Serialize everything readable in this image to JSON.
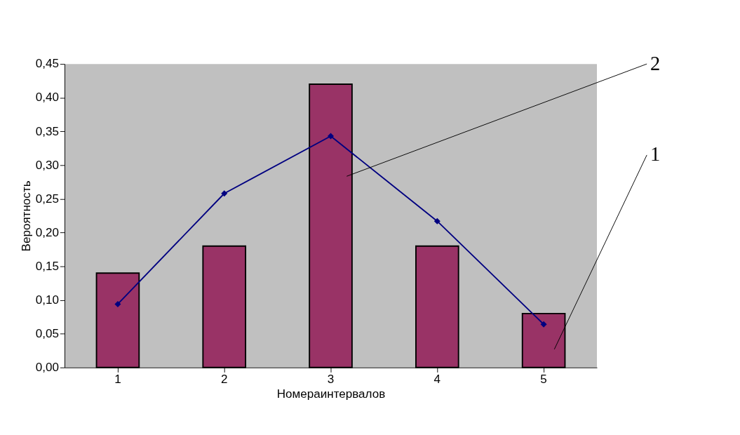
{
  "chart_data": {
    "type": "bar",
    "xlabel": "Номераинтервалов",
    "ylabel": "Вероятность",
    "categories": [
      "1",
      "2",
      "3",
      "4",
      "5"
    ],
    "series": [
      {
        "color": "#993366",
        "values": [
          0.14,
          0.18,
          0.42,
          0.18,
          0.08
        ]
      },
      {
        "type": "line",
        "color": "#000080",
        "marker": "diamond",
        "values": [
          0.094,
          0.258,
          0.343,
          0.217,
          0.064
        ]
      }
    ],
    "ylim": [
      0,
      0.45
    ],
    "yticks": [
      {
        "value": 0,
        "label": "0,00"
      },
      {
        "value": 0.05,
        "label": "0,05"
      },
      {
        "value": 0.1,
        "label": "0,10"
      },
      {
        "value": 0.15,
        "label": "0,15"
      },
      {
        "value": 0.2,
        "label": "0,20"
      },
      {
        "value": 0.25,
        "label": "0,25"
      },
      {
        "value": 0.3,
        "label": "0,30"
      },
      {
        "value": 0.35,
        "label": "0,35"
      },
      {
        "value": 0.4,
        "label": "0,40"
      },
      {
        "value": 0.45,
        "label": "0,45"
      }
    ],
    "annotations": [
      "2",
      "1"
    ],
    "grid": false
  }
}
